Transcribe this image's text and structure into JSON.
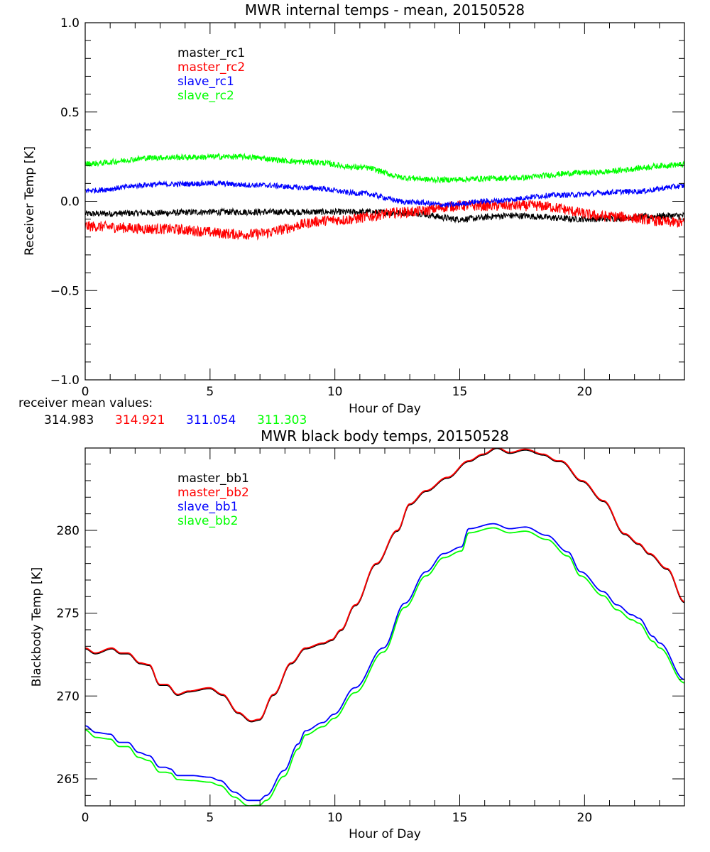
{
  "chart_data": [
    {
      "type": "line",
      "title": "MWR internal temps - mean, 20150528",
      "xlabel": "Hour of Day",
      "ylabel": "Receiver Temp [K]",
      "xlim": [
        0,
        24
      ],
      "ylim": [
        -1.0,
        1.0
      ],
      "x_ticks": [
        0,
        5,
        10,
        15,
        20
      ],
      "x_tick_labels": [
        "0",
        "5",
        "10",
        "15",
        "20"
      ],
      "y_ticks": [
        -1.0,
        -0.5,
        0.0,
        0.5,
        1.0
      ],
      "y_tick_labels": [
        "-1.0",
        "-0.5",
        "0.0",
        "0.5",
        "1.0"
      ],
      "x_minor_step": 1,
      "y_minor_step": 0.1,
      "grid": false,
      "legend_position": "top-left",
      "series": [
        {
          "name": "master_rc1",
          "color": "#000000",
          "noise": 0.018,
          "x": [
            0,
            3,
            5,
            9,
            11,
            13,
            15,
            17,
            20,
            24
          ],
          "y": [
            -0.07,
            -0.065,
            -0.06,
            -0.06,
            -0.06,
            -0.065,
            -0.1,
            -0.08,
            -0.1,
            -0.08
          ]
        },
        {
          "name": "master_rc2",
          "color": "#ff0000",
          "noise": 0.03,
          "x": [
            0,
            3,
            6.5,
            10,
            13,
            15,
            18,
            21,
            24
          ],
          "y": [
            -0.14,
            -0.155,
            -0.185,
            -0.105,
            -0.06,
            -0.025,
            -0.025,
            -0.085,
            -0.12
          ]
        },
        {
          "name": "slave_rc1",
          "color": "#0000ff",
          "noise": 0.015,
          "x": [
            0,
            3,
            5,
            7,
            9,
            11,
            13,
            14.5,
            16,
            19,
            22,
            24
          ],
          "y": [
            0.06,
            0.095,
            0.1,
            0.09,
            0.075,
            0.045,
            -0.005,
            -0.02,
            0.0,
            0.035,
            0.055,
            0.085
          ]
        },
        {
          "name": "slave_rc2",
          "color": "#00ff00",
          "noise": 0.016,
          "x": [
            0,
            3,
            6,
            9,
            11,
            13,
            14,
            17,
            20,
            24
          ],
          "y": [
            0.21,
            0.245,
            0.25,
            0.22,
            0.19,
            0.13,
            0.12,
            0.13,
            0.16,
            0.205
          ]
        }
      ],
      "annotation": {
        "label": "receiver mean values:",
        "values": [
          {
            "text": "314.983",
            "color": "#000000"
          },
          {
            "text": "314.921",
            "color": "#ff0000"
          },
          {
            "text": "311.054",
            "color": "#0000ff"
          },
          {
            "text": "311.303",
            "color": "#00ff00"
          }
        ]
      }
    },
    {
      "type": "line",
      "title": "MWR black body temps, 20150528",
      "xlabel": "Hour of Day",
      "ylabel": "Blackbody Temp [K]",
      "xlim": [
        0,
        24
      ],
      "ylim": [
        263.37,
        284.97
      ],
      "x_ticks": [
        0,
        5,
        10,
        15,
        20
      ],
      "x_tick_labels": [
        "0",
        "5",
        "10",
        "15",
        "20"
      ],
      "y_ticks": [
        265,
        270,
        275,
        280
      ],
      "y_tick_labels": [
        "265",
        "270",
        "275",
        "280"
      ],
      "x_minor_step": 1,
      "y_minor_step": 1,
      "grid": false,
      "legend_position": "top-left",
      "series": [
        {
          "name": "master_bb1",
          "color": "#000000",
          "x": [
            0,
            0.4,
            1.07,
            1.42,
            1.71,
            2.2,
            2.56,
            2.99,
            3.27,
            3.7,
            4.13,
            4.98,
            5.5,
            6.14,
            6.65,
            6.97,
            7.54,
            8.25,
            8.82,
            9.53,
            9.87,
            10.24,
            10.81,
            11.66,
            12.5,
            13.0,
            13.65,
            14.5,
            15.36,
            15.93,
            16.49,
            17.0,
            17.63,
            18.34,
            18.91,
            19.05,
            19.9,
            20.75,
            21.61,
            22.17,
            22.6,
            23.3,
            24.0
          ],
          "y": [
            272.85,
            272.55,
            272.85,
            272.55,
            272.55,
            271.95,
            271.85,
            270.65,
            270.65,
            270.05,
            270.25,
            270.45,
            270.05,
            268.95,
            268.45,
            268.55,
            270.05,
            271.95,
            272.85,
            273.15,
            273.35,
            273.95,
            275.45,
            277.95,
            279.95,
            281.55,
            282.35,
            283.15,
            284.15,
            284.55,
            284.95,
            284.65,
            284.85,
            284.55,
            284.15,
            284.15,
            282.95,
            281.75,
            279.75,
            279.15,
            278.55,
            277.65,
            275.65
          ]
        },
        {
          "name": "master_bb2",
          "color": "#ff0000",
          "x": [
            0,
            0.4,
            1.07,
            1.42,
            1.71,
            2.2,
            2.56,
            2.99,
            3.27,
            3.7,
            4.13,
            4.98,
            5.5,
            6.14,
            6.65,
            6.97,
            7.54,
            8.25,
            8.82,
            9.53,
            9.87,
            10.24,
            10.81,
            11.66,
            12.5,
            13.0,
            13.65,
            14.5,
            15.36,
            15.93,
            16.49,
            17.0,
            17.63,
            18.34,
            18.91,
            19.05,
            19.9,
            20.75,
            21.61,
            22.17,
            22.6,
            23.3,
            24.0
          ],
          "y": [
            272.9,
            272.6,
            272.9,
            272.6,
            272.6,
            272.0,
            271.9,
            270.7,
            270.7,
            270.1,
            270.3,
            270.5,
            270.1,
            269.0,
            268.5,
            268.6,
            270.1,
            272.0,
            272.9,
            273.2,
            273.4,
            274.0,
            275.5,
            278.0,
            280.0,
            281.6,
            282.4,
            283.2,
            284.2,
            284.6,
            285.0,
            284.7,
            284.9,
            284.6,
            284.2,
            284.2,
            283.0,
            281.8,
            279.8,
            279.2,
            278.6,
            277.7,
            275.7
          ]
        },
        {
          "name": "slave_bb1",
          "color": "#0000ff",
          "x": [
            0,
            0.43,
            1.0,
            1.37,
            1.71,
            2.13,
            2.56,
            2.99,
            3.21,
            3.41,
            3.7,
            4.27,
            4.98,
            5.4,
            5.97,
            6.54,
            6.97,
            7.25,
            7.96,
            8.53,
            8.82,
            9.53,
            9.96,
            10.8,
            11.94,
            12.8,
            13.65,
            14.36,
            15.07,
            15.36,
            16.35,
            17.0,
            17.63,
            18.48,
            19.33,
            19.84,
            20.75,
            21.3,
            21.9,
            22.17,
            22.74,
            23.0,
            24.0
          ],
          "y": [
            268.2,
            267.8,
            267.7,
            267.2,
            267.2,
            266.6,
            266.4,
            265.7,
            265.7,
            265.6,
            265.2,
            265.2,
            265.1,
            264.9,
            264.2,
            263.7,
            263.7,
            264.0,
            265.5,
            267.1,
            267.9,
            268.4,
            268.9,
            270.5,
            272.9,
            275.6,
            277.5,
            278.6,
            279.0,
            280.1,
            280.4,
            280.1,
            280.2,
            279.7,
            278.7,
            277.5,
            276.3,
            275.5,
            274.9,
            274.7,
            273.6,
            273.2,
            271.0
          ]
        },
        {
          "name": "slave_bb2",
          "color": "#00ff00",
          "x": [
            0,
            0.43,
            1.0,
            1.37,
            1.71,
            2.13,
            2.56,
            2.99,
            3.21,
            3.41,
            3.7,
            4.27,
            4.98,
            5.4,
            5.97,
            6.54,
            6.97,
            7.25,
            7.96,
            8.53,
            8.82,
            9.53,
            9.96,
            10.8,
            11.94,
            12.8,
            13.65,
            14.36,
            15.07,
            15.36,
            16.35,
            17.0,
            17.63,
            18.48,
            19.33,
            19.84,
            20.75,
            21.3,
            21.9,
            22.17,
            22.74,
            23.0,
            24.0
          ],
          "y": [
            267.95,
            267.5,
            267.4,
            266.95,
            266.95,
            266.3,
            266.1,
            265.4,
            265.4,
            265.35,
            264.95,
            264.9,
            264.8,
            264.6,
            263.9,
            263.37,
            263.4,
            263.7,
            265.15,
            266.8,
            267.65,
            268.15,
            268.65,
            270.2,
            272.65,
            275.35,
            277.25,
            278.35,
            278.75,
            279.85,
            280.15,
            279.85,
            279.95,
            279.45,
            278.45,
            277.25,
            276.05,
            275.2,
            274.6,
            274.4,
            273.3,
            272.9,
            270.8
          ]
        }
      ]
    }
  ]
}
